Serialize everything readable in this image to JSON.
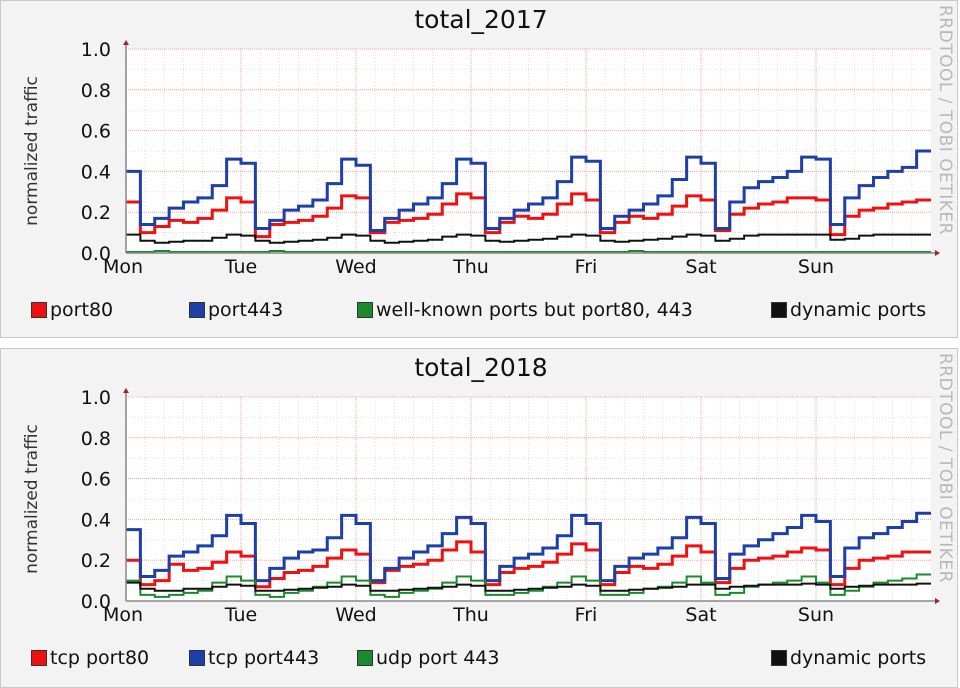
{
  "chart_data": [
    {
      "type": "line",
      "title": "total_2017",
      "ylabel": "normalized traffic",
      "watermark": "RRDTOOL / TOBI OETIKER",
      "ylim": [
        0,
        1.0
      ],
      "yticks": [
        "0.0",
        "0.2",
        "0.4",
        "0.6",
        "0.8",
        "1.0"
      ],
      "xticks": [
        "Mon",
        "Tue",
        "Wed",
        "Thu",
        "Fri",
        "Sat",
        "Sun"
      ],
      "x_step_hours": 3,
      "grid": true,
      "legend_position": "bottom",
      "series": [
        {
          "name": "port80",
          "color": "#ee1111",
          "values": [
            0.25,
            0.1,
            0.13,
            0.16,
            0.15,
            0.17,
            0.21,
            0.27,
            0.25,
            0.08,
            0.14,
            0.15,
            0.16,
            0.18,
            0.22,
            0.28,
            0.27,
            0.1,
            0.15,
            0.16,
            0.17,
            0.19,
            0.24,
            0.29,
            0.27,
            0.1,
            0.15,
            0.18,
            0.17,
            0.19,
            0.24,
            0.29,
            0.26,
            0.1,
            0.15,
            0.18,
            0.17,
            0.19,
            0.23,
            0.28,
            0.26,
            0.11,
            0.19,
            0.22,
            0.24,
            0.25,
            0.27,
            0.27,
            0.26,
            0.09,
            0.18,
            0.21,
            0.22,
            0.24,
            0.25,
            0.26
          ]
        },
        {
          "name": "port443",
          "color": "#1c3fa8",
          "values": [
            0.4,
            0.14,
            0.17,
            0.22,
            0.25,
            0.27,
            0.33,
            0.46,
            0.44,
            0.12,
            0.16,
            0.21,
            0.23,
            0.26,
            0.34,
            0.46,
            0.43,
            0.11,
            0.17,
            0.21,
            0.24,
            0.27,
            0.34,
            0.46,
            0.44,
            0.12,
            0.17,
            0.21,
            0.24,
            0.27,
            0.35,
            0.47,
            0.45,
            0.12,
            0.18,
            0.21,
            0.24,
            0.28,
            0.36,
            0.47,
            0.44,
            0.12,
            0.25,
            0.32,
            0.35,
            0.37,
            0.4,
            0.47,
            0.46,
            0.14,
            0.27,
            0.33,
            0.37,
            0.4,
            0.42,
            0.5
          ]
        },
        {
          "name": "well-known ports but port80, 443",
          "color": "#1a8a2e",
          "values": [
            0.005,
            0.005,
            0.01,
            0.005,
            0.005,
            0.005,
            0.005,
            0.005,
            0.005,
            0.005,
            0.01,
            0.005,
            0.005,
            0.005,
            0.005,
            0.005,
            0.005,
            0.005,
            0.005,
            0.005,
            0.005,
            0.005,
            0.005,
            0.005,
            0.005,
            0.005,
            0.005,
            0.005,
            0.005,
            0.005,
            0.005,
            0.005,
            0.005,
            0.005,
            0.005,
            0.01,
            0.005,
            0.005,
            0.005,
            0.005,
            0.005,
            0.005,
            0.005,
            0.005,
            0.005,
            0.005,
            0.005,
            0.005,
            0.005,
            0.005,
            0.005,
            0.005,
            0.005,
            0.005,
            0.005,
            0.005
          ]
        },
        {
          "name": "dynamic ports",
          "color": "#111111",
          "values": [
            0.09,
            0.06,
            0.05,
            0.055,
            0.06,
            0.06,
            0.075,
            0.09,
            0.085,
            0.06,
            0.05,
            0.055,
            0.06,
            0.065,
            0.075,
            0.09,
            0.085,
            0.06,
            0.05,
            0.055,
            0.06,
            0.065,
            0.08,
            0.09,
            0.085,
            0.06,
            0.055,
            0.06,
            0.065,
            0.07,
            0.08,
            0.09,
            0.085,
            0.06,
            0.055,
            0.06,
            0.065,
            0.07,
            0.08,
            0.09,
            0.085,
            0.06,
            0.07,
            0.085,
            0.09,
            0.09,
            0.09,
            0.09,
            0.09,
            0.065,
            0.07,
            0.085,
            0.09,
            0.09,
            0.09,
            0.09
          ]
        }
      ]
    },
    {
      "type": "line",
      "title": "total_2018",
      "ylabel": "normalized traffic",
      "watermark": "RRDTOOL / TOBI OETIKER",
      "ylim": [
        0,
        1.0
      ],
      "yticks": [
        "0.0",
        "0.2",
        "0.4",
        "0.6",
        "0.8",
        "1.0"
      ],
      "xticks": [
        "Mon",
        "Tue",
        "Wed",
        "Thu",
        "Fri",
        "Sat",
        "Sun"
      ],
      "x_step_hours": 3,
      "grid": true,
      "legend_position": "bottom",
      "series": [
        {
          "name": "tcp port80",
          "color": "#ee1111",
          "values": [
            0.2,
            0.08,
            0.1,
            0.18,
            0.15,
            0.16,
            0.19,
            0.24,
            0.22,
            0.07,
            0.11,
            0.14,
            0.15,
            0.17,
            0.21,
            0.25,
            0.23,
            0.09,
            0.15,
            0.17,
            0.18,
            0.2,
            0.25,
            0.29,
            0.24,
            0.08,
            0.14,
            0.16,
            0.17,
            0.19,
            0.23,
            0.28,
            0.25,
            0.08,
            0.14,
            0.17,
            0.16,
            0.18,
            0.22,
            0.27,
            0.24,
            0.09,
            0.16,
            0.2,
            0.21,
            0.22,
            0.24,
            0.26,
            0.25,
            0.08,
            0.16,
            0.2,
            0.21,
            0.22,
            0.24,
            0.24
          ]
        },
        {
          "name": "tcp port443",
          "color": "#1c3fa8",
          "values": [
            0.35,
            0.12,
            0.15,
            0.22,
            0.24,
            0.27,
            0.32,
            0.42,
            0.38,
            0.1,
            0.16,
            0.21,
            0.24,
            0.25,
            0.31,
            0.42,
            0.38,
            0.1,
            0.16,
            0.21,
            0.24,
            0.27,
            0.33,
            0.41,
            0.38,
            0.1,
            0.17,
            0.21,
            0.23,
            0.26,
            0.32,
            0.42,
            0.38,
            0.1,
            0.17,
            0.21,
            0.23,
            0.26,
            0.31,
            0.41,
            0.38,
            0.11,
            0.23,
            0.27,
            0.3,
            0.33,
            0.36,
            0.42,
            0.39,
            0.12,
            0.26,
            0.31,
            0.33,
            0.36,
            0.39,
            0.43
          ]
        },
        {
          "name": "udp port 443",
          "color": "#1a8a2e",
          "values": [
            0.1,
            0.03,
            0.02,
            0.03,
            0.04,
            0.05,
            0.09,
            0.12,
            0.1,
            0.03,
            0.02,
            0.04,
            0.05,
            0.07,
            0.09,
            0.12,
            0.1,
            0.03,
            0.02,
            0.04,
            0.05,
            0.06,
            0.09,
            0.12,
            0.1,
            0.03,
            0.03,
            0.04,
            0.05,
            0.07,
            0.09,
            0.12,
            0.1,
            0.03,
            0.03,
            0.04,
            0.06,
            0.07,
            0.09,
            0.12,
            0.09,
            0.03,
            0.04,
            0.07,
            0.08,
            0.09,
            0.1,
            0.12,
            0.09,
            0.03,
            0.05,
            0.07,
            0.09,
            0.1,
            0.11,
            0.13
          ]
        },
        {
          "name": "dynamic ports",
          "color": "#111111",
          "values": [
            0.09,
            0.06,
            0.05,
            0.05,
            0.06,
            0.06,
            0.07,
            0.08,
            0.075,
            0.05,
            0.05,
            0.055,
            0.06,
            0.065,
            0.07,
            0.08,
            0.075,
            0.05,
            0.05,
            0.055,
            0.06,
            0.065,
            0.07,
            0.08,
            0.075,
            0.05,
            0.05,
            0.055,
            0.06,
            0.065,
            0.07,
            0.08,
            0.075,
            0.05,
            0.05,
            0.055,
            0.06,
            0.065,
            0.07,
            0.08,
            0.08,
            0.06,
            0.07,
            0.075,
            0.08,
            0.08,
            0.08,
            0.085,
            0.08,
            0.06,
            0.07,
            0.075,
            0.08,
            0.08,
            0.08,
            0.085
          ]
        }
      ]
    }
  ]
}
